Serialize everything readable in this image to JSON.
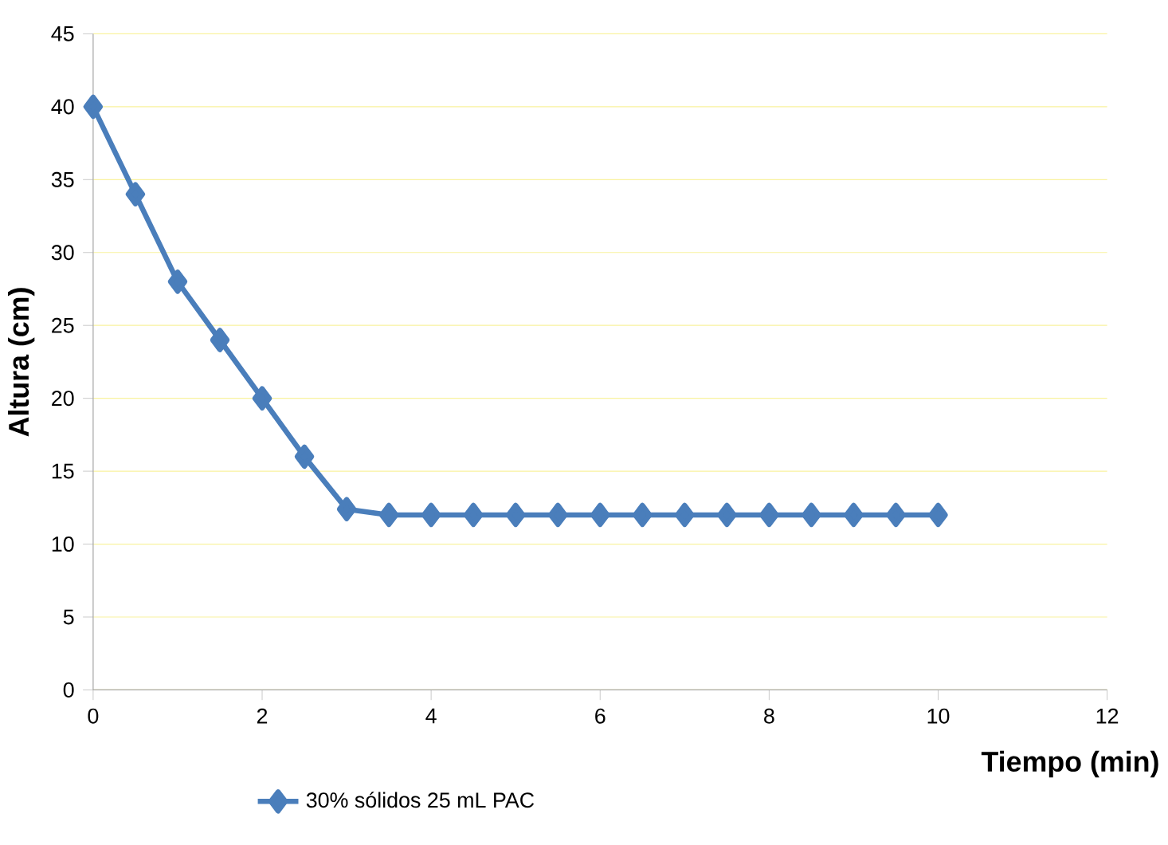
{
  "chart_data": {
    "type": "line",
    "xlabel": "Tiempo (min)",
    "ylabel": "Altura (cm)",
    "x": [
      0,
      0.5,
      1,
      1.5,
      2,
      2.5,
      3,
      3.5,
      4,
      4.5,
      5,
      5.5,
      6,
      6.5,
      7,
      7.5,
      8,
      8.5,
      9,
      9.5,
      10
    ],
    "series": [
      {
        "name": "30% sólidos 25 mL PAC",
        "color": "#4a7ebb",
        "values": [
          40,
          34,
          28,
          24,
          20,
          16,
          12.4,
          12,
          12,
          12,
          12,
          12,
          12,
          12,
          12,
          12,
          12,
          12,
          12,
          12,
          12
        ]
      }
    ],
    "xlim": [
      0,
      12
    ],
    "xticks": [
      0,
      2,
      4,
      6,
      8,
      10,
      12
    ],
    "ylim": [
      0,
      45
    ],
    "yticks": [
      0,
      5,
      10,
      15,
      20,
      25,
      30,
      35,
      40,
      45
    ],
    "grid": "y",
    "legend": "bottom",
    "marker": "diamond",
    "line_style": "solid"
  }
}
